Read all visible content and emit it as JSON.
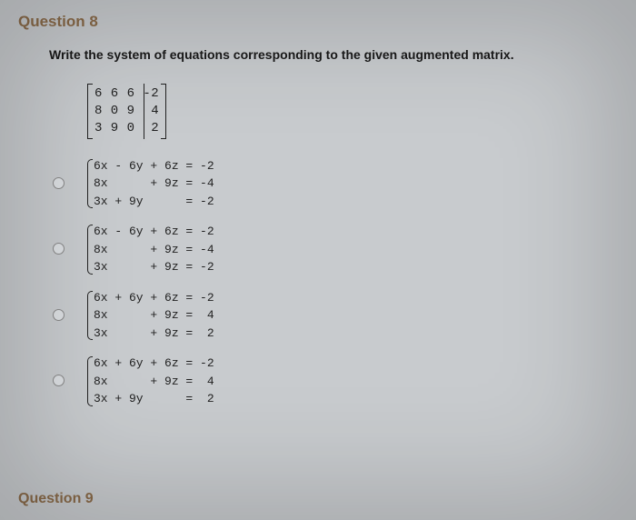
{
  "question_title": "Question 8",
  "prompt": "Write the system of equations corresponding to the given augmented matrix.",
  "matrix": {
    "row1": "6 6 6 -2",
    "row2": "8 0 9  4",
    "row3": "3 9 0  2"
  },
  "options": [
    {
      "eq1": "6x - 6y + 6z = -2",
      "eq2": "8x      + 9z = -4",
      "eq3": "3x + 9y      = -2"
    },
    {
      "eq1": "6x - 6y + 6z = -2",
      "eq2": "8x      + 9z = -4",
      "eq3": "3x      + 9z = -2"
    },
    {
      "eq1": "6x + 6y + 6z = -2",
      "eq2": "8x      + 9z =  4",
      "eq3": "3x      + 9z =  2"
    },
    {
      "eq1": "6x + 6y + 6z = -2",
      "eq2": "8x      + 9z =  4",
      "eq3": "3x + 9y      =  2"
    }
  ],
  "next_question": "Question 9",
  "colors": {
    "background": "#c8cbce",
    "heading": "#8a6b4a",
    "text": "#1a1a1a"
  }
}
